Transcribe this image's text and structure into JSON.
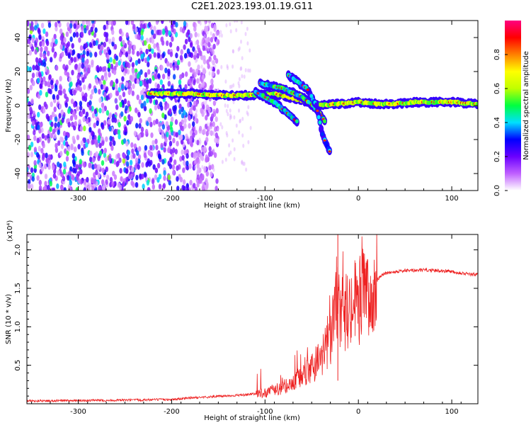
{
  "title": "C2E1.2023.193.01.19.G11",
  "chart_data": [
    {
      "type": "heatmap",
      "xlabel": "Height of straight line (km)",
      "ylabel": "Frequency (Hz)",
      "xlim": [
        -355,
        128
      ],
      "ylim": [
        -50,
        50
      ],
      "x_ticks": [
        -300,
        -200,
        -100,
        0,
        100
      ],
      "x_tick_labels": [
        "-300",
        "-200",
        "-100",
        "0",
        "100"
      ],
      "y_ticks": [
        -40,
        -20,
        0,
        20,
        40
      ],
      "y_tick_labels": [
        "-40",
        "-20",
        "0",
        "20",
        "40"
      ],
      "colorbar": {
        "label": "Normalized spectral amplitude",
        "range": [
          0,
          1
        ],
        "ticks": [
          0.0,
          0.2,
          0.4,
          0.6,
          0.8
        ],
        "tick_labels": [
          "0.0",
          "0.2",
          "0.4",
          "0.6",
          "0.8"
        ],
        "colors": [
          "#ffffff",
          "#c060ff",
          "#6a00ff",
          "#0000ff",
          "#00e0ff",
          "#00ff40",
          "#c0ff00",
          "#ffff00",
          "#ff8000",
          "#ff0000",
          "#ff0080"
        ]
      },
      "features": [
        {
          "name": "noise",
          "x_range": [
            -355,
            -175
          ],
          "freq_range": [
            -50,
            50
          ],
          "amplitude": 0.2
        },
        {
          "name": "carrier",
          "points": [
            [
              -225,
              7
            ],
            [
              -180,
              7
            ],
            [
              -150,
              6
            ],
            [
              -120,
              6
            ],
            [
              -90,
              7
            ],
            [
              -60,
              3
            ],
            [
              -40,
              0
            ],
            [
              -20,
              1
            ],
            [
              0,
              2
            ],
            [
              20,
              1
            ],
            [
              40,
              1
            ],
            [
              60,
              2
            ],
            [
              80,
              2
            ],
            [
              100,
              2
            ],
            [
              128,
              1
            ]
          ],
          "amplitude": 0.6
        },
        {
          "name": "branch-upper",
          "points": [
            [
              -105,
              13
            ],
            [
              -80,
              10
            ],
            [
              -60,
              5
            ],
            [
              -45,
              -2
            ],
            [
              -35,
              -10
            ]
          ],
          "amplitude": 0.45
        },
        {
          "name": "branch-lower",
          "points": [
            [
              -110,
              8
            ],
            [
              -90,
              2
            ],
            [
              -75,
              -5
            ],
            [
              -65,
              -10
            ]
          ],
          "amplitude": 0.4
        },
        {
          "name": "branch-steep",
          "points": [
            [
              -75,
              18
            ],
            [
              -55,
              10
            ],
            [
              -45,
              0
            ],
            [
              -38,
              -18
            ],
            [
              -30,
              -28
            ]
          ],
          "amplitude": 0.35
        }
      ]
    },
    {
      "type": "line",
      "xlabel": "Height of straight line (km)",
      "ylabel": "SNR (10 * v/v)",
      "y_exponent_label": "(x10⁴)",
      "xlim": [
        -355,
        128
      ],
      "ylim": [
        0,
        22000
      ],
      "x_ticks": [
        -300,
        -200,
        -100,
        0,
        100
      ],
      "x_tick_labels": [
        "-300",
        "-200",
        "-100",
        "0",
        "100"
      ],
      "y_ticks": [
        5000,
        10000,
        15000,
        20000
      ],
      "y_tick_labels": [
        "0.5",
        "1.0",
        "1.5",
        "2.0"
      ],
      "color": "#ee2222",
      "x": [
        -355,
        -300,
        -250,
        -200,
        -180,
        -150,
        -120,
        -100,
        -90,
        -80,
        -70,
        -60,
        -50,
        -45,
        -40,
        -35,
        -30,
        -25,
        -22,
        -20,
        -15,
        -10,
        -5,
        0,
        5,
        10,
        15,
        20,
        25,
        30,
        40,
        50,
        60,
        70,
        80,
        90,
        100,
        110,
        120,
        128
      ],
      "y": [
        300,
        350,
        400,
        500,
        700,
        900,
        1100,
        1400,
        1800,
        2200,
        3000,
        3500,
        4500,
        5500,
        6500,
        7500,
        9000,
        12000,
        16000,
        11000,
        12000,
        12500,
        13000,
        13500,
        14000,
        14500,
        15000,
        16000,
        16800,
        17000,
        17200,
        17300,
        17300,
        17400,
        17300,
        17300,
        17200,
        17000,
        16800,
        16800
      ]
    }
  ]
}
